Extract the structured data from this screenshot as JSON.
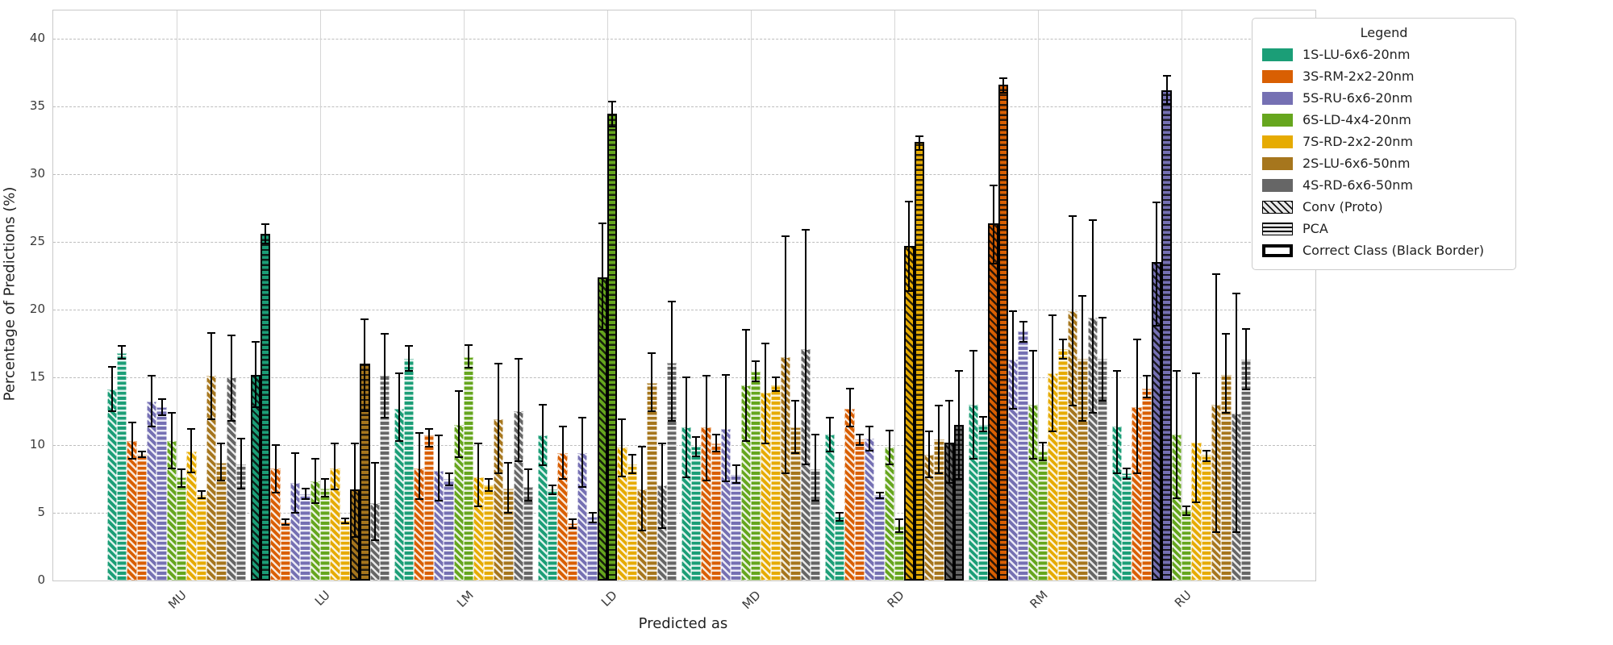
{
  "chart_data": {
    "type": "bar",
    "title": "",
    "xlabel": "Predicted as",
    "ylabel": "Percentage of Predictions (%)",
    "ylim": [
      0,
      42.1
    ],
    "yticks": [
      0,
      5,
      10,
      15,
      20,
      25,
      30,
      35,
      40
    ],
    "grid": "horizontal dashed + vertical light solid at group centers",
    "legend_position": "upper right, overlapping plot",
    "categories": [
      "MU",
      "LU",
      "LM",
      "LD",
      "MD",
      "RD",
      "RM",
      "RU"
    ],
    "methods": [
      "Conv (Proto)",
      "PCA"
    ],
    "hatches": {
      "conv": "diagonal",
      "pca": "horizontal"
    },
    "legend": {
      "title": "Legend",
      "conv_label": "Conv (Proto)",
      "pca_label": "PCA",
      "correct_label": "Correct Class (Black Border)"
    },
    "series": [
      {
        "name": "1S-LU-6x6-20nm",
        "color": "#1b9e77"
      },
      {
        "name": "3S-RM-2x2-20nm",
        "color": "#d95f02"
      },
      {
        "name": "5S-RU-6x6-20nm",
        "color": "#7570b3"
      },
      {
        "name": "6S-LD-4x4-20nm",
        "color": "#66a61e"
      },
      {
        "name": "7S-RD-2x2-20nm",
        "color": "#e6ab02"
      },
      {
        "name": "2S-LU-6x6-50nm",
        "color": "#a6761d"
      },
      {
        "name": "4S-RD-6x6-50nm",
        "color": "#666666"
      }
    ],
    "correct_map": {
      "MU": [],
      "LU": [
        0,
        5
      ],
      "LM": [],
      "LD": [
        3
      ],
      "MD": [],
      "RD": [
        4,
        6
      ],
      "RM": [
        1
      ],
      "RU": [
        2
      ]
    },
    "bar_order_note": "bars = [series0-conv, series0-pca, series1-conv, series1-pca, ... series6-pca]; each entry = [value, err_low, err_high] in %",
    "groups": [
      {
        "label": "MU",
        "bars": [
          [
            14.1,
            12.5,
            15.8
          ],
          [
            16.8,
            16.4,
            17.3
          ],
          [
            10.3,
            9.0,
            11.7
          ],
          [
            9.3,
            9.1,
            9.5
          ],
          [
            13.2,
            11.4,
            15.1
          ],
          [
            12.8,
            12.2,
            13.4
          ],
          [
            10.3,
            8.3,
            12.4
          ],
          [
            7.6,
            6.9,
            8.2
          ],
          [
            9.5,
            8.0,
            11.2
          ],
          [
            6.3,
            6.1,
            6.6
          ],
          [
            15.1,
            11.9,
            18.3
          ],
          [
            8.7,
            7.4,
            10.1
          ],
          [
            15.0,
            11.8,
            18.1
          ],
          [
            8.6,
            6.8,
            10.5
          ]
        ]
      },
      {
        "label": "LU",
        "bars": [
          [
            15.2,
            12.8,
            17.6
          ],
          [
            25.6,
            24.9,
            26.3
          ],
          [
            8.3,
            6.5,
            10.0
          ],
          [
            4.3,
            4.1,
            4.5
          ],
          [
            7.2,
            5.0,
            9.4
          ],
          [
            6.4,
            6.0,
            6.8
          ],
          [
            7.3,
            5.7,
            9.0
          ],
          [
            6.8,
            6.2,
            7.5
          ],
          [
            8.3,
            6.7,
            10.1
          ],
          [
            4.4,
            4.2,
            4.6
          ],
          [
            6.7,
            3.2,
            10.1
          ],
          [
            16.0,
            12.5,
            19.3
          ],
          [
            5.7,
            3.0,
            8.7
          ],
          [
            15.1,
            12.0,
            18.2
          ]
        ]
      },
      {
        "label": "LM",
        "bars": [
          [
            12.7,
            10.3,
            15.3
          ],
          [
            16.4,
            15.5,
            17.3
          ],
          [
            8.3,
            6.0,
            10.9
          ],
          [
            10.7,
            9.9,
            11.2
          ],
          [
            8.1,
            5.9,
            10.7
          ],
          [
            7.5,
            7.0,
            7.9
          ],
          [
            11.5,
            9.1,
            14.0
          ],
          [
            16.5,
            15.7,
            17.4
          ],
          [
            7.6,
            5.5,
            10.1
          ],
          [
            7.0,
            6.6,
            7.5
          ],
          [
            11.9,
            7.9,
            16.0
          ],
          [
            6.8,
            5.0,
            8.7
          ],
          [
            12.5,
            8.8,
            16.4
          ],
          [
            6.9,
            5.9,
            8.2
          ]
        ]
      },
      {
        "label": "LD",
        "bars": [
          [
            10.7,
            8.5,
            13.0
          ],
          [
            6.7,
            6.4,
            7.0
          ],
          [
            9.4,
            7.5,
            11.4
          ],
          [
            4.2,
            3.9,
            4.5
          ],
          [
            9.4,
            6.9,
            12.0
          ],
          [
            4.7,
            4.3,
            5.0
          ],
          [
            22.4,
            18.5,
            26.4
          ],
          [
            34.5,
            33.5,
            35.4
          ],
          [
            9.8,
            7.7,
            11.9
          ],
          [
            8.6,
            7.9,
            9.3
          ],
          [
            6.7,
            3.7,
            9.9
          ],
          [
            14.6,
            12.5,
            16.8
          ],
          [
            7.0,
            3.9,
            10.1
          ],
          [
            16.1,
            11.8,
            20.6
          ]
        ]
      },
      {
        "label": "MD",
        "bars": [
          [
            11.3,
            7.6,
            15.0
          ],
          [
            9.9,
            9.2,
            10.6
          ],
          [
            11.3,
            7.4,
            15.1
          ],
          [
            10.1,
            9.5,
            10.8
          ],
          [
            11.2,
            7.3,
            15.2
          ],
          [
            7.8,
            7.2,
            8.5
          ],
          [
            14.4,
            10.3,
            18.5
          ],
          [
            15.4,
            14.7,
            16.2
          ],
          [
            13.9,
            10.1,
            17.5
          ],
          [
            14.4,
            14.0,
            15.0
          ],
          [
            16.5,
            7.9,
            25.4
          ],
          [
            11.3,
            9.4,
            13.3
          ],
          [
            17.1,
            8.6,
            25.9
          ],
          [
            8.2,
            5.9,
            10.8
          ]
        ]
      },
      {
        "label": "RD",
        "bars": [
          [
            10.8,
            9.5,
            12.0
          ],
          [
            4.7,
            4.4,
            5.0
          ],
          [
            12.7,
            11.4,
            14.2
          ],
          [
            10.4,
            10.0,
            10.8
          ],
          [
            10.5,
            9.6,
            11.4
          ],
          [
            6.3,
            6.1,
            6.5
          ],
          [
            9.8,
            8.6,
            11.1
          ],
          [
            4.0,
            3.6,
            4.5
          ],
          [
            24.7,
            21.4,
            28.0
          ],
          [
            32.4,
            31.8,
            32.8
          ],
          [
            9.3,
            7.6,
            11.0
          ],
          [
            10.4,
            7.9,
            12.9
          ],
          [
            10.2,
            7.2,
            13.3
          ],
          [
            11.5,
            7.5,
            15.5
          ]
        ]
      },
      {
        "label": "RM",
        "bars": [
          [
            13.0,
            9.0,
            17.0
          ],
          [
            11.5,
            11.0,
            12.1
          ],
          [
            26.4,
            23.4,
            29.2
          ],
          [
            36.6,
            36.0,
            37.1
          ],
          [
            16.3,
            12.7,
            19.9
          ],
          [
            18.4,
            17.6,
            19.1
          ],
          [
            13.0,
            9.0,
            17.0
          ],
          [
            9.5,
            8.9,
            10.2
          ],
          [
            15.3,
            11.0,
            19.6
          ],
          [
            17.1,
            16.4,
            17.8
          ],
          [
            19.9,
            12.9,
            26.9
          ],
          [
            16.4,
            11.8,
            21.0
          ],
          [
            19.4,
            12.4,
            26.6
          ],
          [
            16.4,
            13.3,
            19.4
          ]
        ]
      },
      {
        "label": "RU",
        "bars": [
          [
            11.4,
            7.9,
            15.5
          ],
          [
            7.9,
            7.5,
            8.3
          ],
          [
            12.8,
            7.9,
            17.8
          ],
          [
            14.2,
            13.5,
            15.1
          ],
          [
            23.5,
            18.8,
            27.9
          ],
          [
            36.2,
            35.2,
            37.3
          ],
          [
            10.8,
            6.1,
            15.5
          ],
          [
            5.2,
            4.8,
            5.5
          ],
          [
            10.2,
            5.8,
            15.3
          ],
          [
            9.3,
            8.8,
            9.6
          ],
          [
            13.0,
            3.6,
            22.6
          ],
          [
            15.2,
            12.4,
            18.2
          ],
          [
            12.3,
            3.6,
            21.2
          ],
          [
            16.3,
            14.1,
            18.6
          ]
        ]
      }
    ]
  }
}
